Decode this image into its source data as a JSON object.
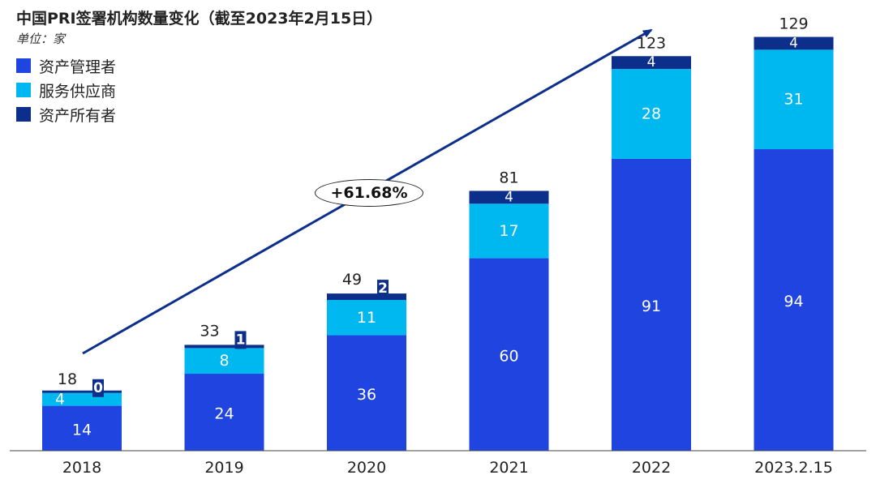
{
  "chart_data": {
    "type": "bar",
    "stacked": true,
    "title": "中国PRI签署机构数量变化（截至2023年2月15日）",
    "unit_label": "单位：家",
    "categories": [
      "2018",
      "2019",
      "2020",
      "2021",
      "2022",
      "2023.2.15"
    ],
    "series": [
      {
        "name": "资产管理者",
        "color": "#1f44e0",
        "values": [
          14,
          24,
          36,
          60,
          91,
          94
        ]
      },
      {
        "name": "服务供应商",
        "color": "#00b8f0",
        "values": [
          4,
          8,
          11,
          17,
          28,
          31
        ]
      },
      {
        "name": "资产所有者",
        "color": "#0d2f8c",
        "values": [
          0,
          1,
          2,
          4,
          4,
          4
        ]
      }
    ],
    "totals": [
      18,
      33,
      49,
      81,
      123,
      129
    ],
    "growth_annotation": "+61.68%",
    "ylim": [
      0,
      140
    ]
  }
}
